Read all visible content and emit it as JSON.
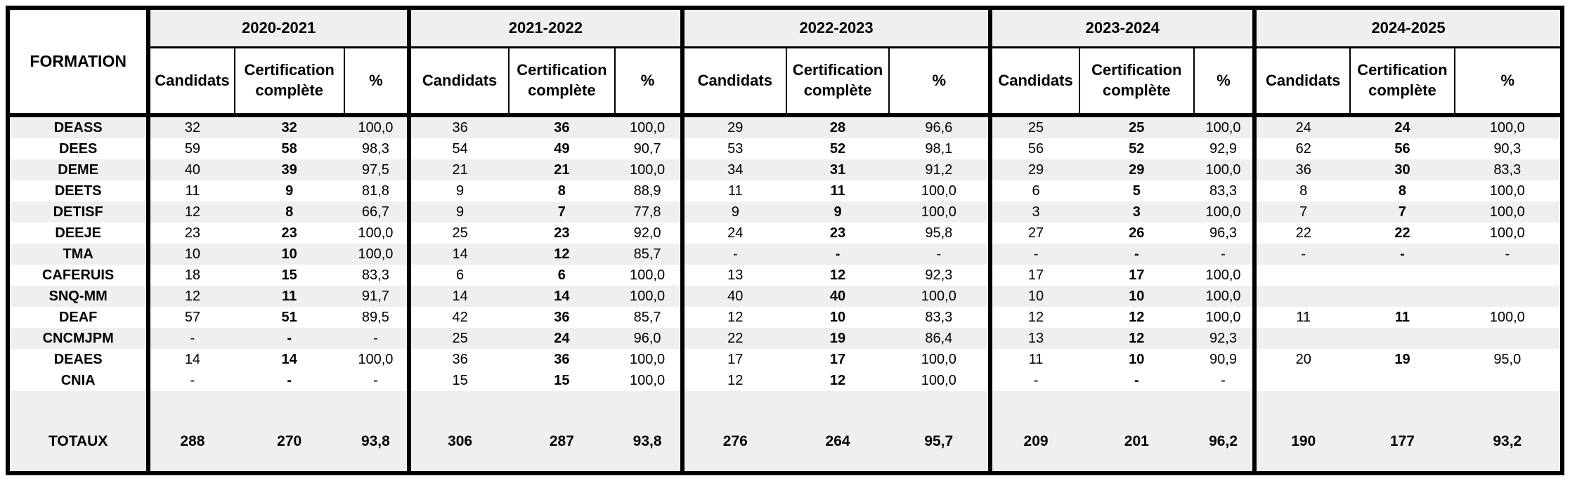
{
  "chart_data": {
    "type": "table",
    "formation_header": "FORMATION",
    "years": [
      "2020-2021",
      "2021-2022",
      "2022-2023",
      "2023-2024",
      "2024-2025"
    ],
    "sub_headers": {
      "candidats": "Candidats",
      "certification": "Certification complète",
      "percent": "%"
    },
    "rows": [
      {
        "formation": "DEASS",
        "shaded": true,
        "cells": [
          [
            "32",
            "32",
            "100,0"
          ],
          [
            "36",
            "36",
            "100,0"
          ],
          [
            "29",
            "28",
            "96,6"
          ],
          [
            "25",
            "25",
            "100,0"
          ],
          [
            "24",
            "24",
            "100,0"
          ]
        ]
      },
      {
        "formation": "DEES",
        "shaded": false,
        "cells": [
          [
            "59",
            "58",
            "98,3"
          ],
          [
            "54",
            "49",
            "90,7"
          ],
          [
            "53",
            "52",
            "98,1"
          ],
          [
            "56",
            "52",
            "92,9"
          ],
          [
            "62",
            "56",
            "90,3"
          ]
        ]
      },
      {
        "formation": "DEME",
        "shaded": true,
        "cells": [
          [
            "40",
            "39",
            "97,5"
          ],
          [
            "21",
            "21",
            "100,0"
          ],
          [
            "34",
            "31",
            "91,2"
          ],
          [
            "29",
            "29",
            "100,0"
          ],
          [
            "36",
            "30",
            "83,3"
          ]
        ]
      },
      {
        "formation": "DEETS",
        "shaded": false,
        "cells": [
          [
            "11",
            "9",
            "81,8"
          ],
          [
            "9",
            "8",
            "88,9"
          ],
          [
            "11",
            "11",
            "100,0"
          ],
          [
            "6",
            "5",
            "83,3"
          ],
          [
            "8",
            "8",
            "100,0"
          ]
        ]
      },
      {
        "formation": "DETISF",
        "shaded": true,
        "cells": [
          [
            "12",
            "8",
            "66,7"
          ],
          [
            "9",
            "7",
            "77,8"
          ],
          [
            "9",
            "9",
            "100,0"
          ],
          [
            "3",
            "3",
            "100,0"
          ],
          [
            "7",
            "7",
            "100,0"
          ]
        ]
      },
      {
        "formation": "DEEJE",
        "shaded": false,
        "cells": [
          [
            "23",
            "23",
            "100,0"
          ],
          [
            "25",
            "23",
            "92,0"
          ],
          [
            "24",
            "23",
            "95,8"
          ],
          [
            "27",
            "26",
            "96,3"
          ],
          [
            "22",
            "22",
            "100,0"
          ]
        ]
      },
      {
        "formation": "TMA",
        "shaded": true,
        "cells": [
          [
            "10",
            "10",
            "100,0"
          ],
          [
            "14",
            "12",
            "85,7"
          ],
          [
            "-",
            "-",
            "-"
          ],
          [
            "-",
            "-",
            "-"
          ],
          [
            "-",
            "-",
            "-"
          ]
        ]
      },
      {
        "formation": "CAFERUIS",
        "shaded": false,
        "cells": [
          [
            "18",
            "15",
            "83,3"
          ],
          [
            "6",
            "6",
            "100,0"
          ],
          [
            "13",
            "12",
            "92,3"
          ],
          [
            "17",
            "17",
            "100,0"
          ],
          [
            "",
            "",
            ""
          ]
        ]
      },
      {
        "formation": "SNQ-MM",
        "shaded": true,
        "cells": [
          [
            "12",
            "11",
            "91,7"
          ],
          [
            "14",
            "14",
            "100,0"
          ],
          [
            "40",
            "40",
            "100,0"
          ],
          [
            "10",
            "10",
            "100,0"
          ],
          [
            "",
            "",
            ""
          ]
        ]
      },
      {
        "formation": "DEAF",
        "shaded": false,
        "cells": [
          [
            "57",
            "51",
            "89,5"
          ],
          [
            "42",
            "36",
            "85,7"
          ],
          [
            "12",
            "10",
            "83,3"
          ],
          [
            "12",
            "12",
            "100,0"
          ],
          [
            "11",
            "11",
            "100,0"
          ]
        ]
      },
      {
        "formation": "CNCMJPM",
        "shaded": true,
        "cells": [
          [
            "-",
            "-",
            "-"
          ],
          [
            "25",
            "24",
            "96,0"
          ],
          [
            "22",
            "19",
            "86,4"
          ],
          [
            "13",
            "12",
            "92,3"
          ],
          [
            "",
            "",
            ""
          ]
        ]
      },
      {
        "formation": "DEAES",
        "shaded": false,
        "cells": [
          [
            "14",
            "14",
            "100,0"
          ],
          [
            "36",
            "36",
            "100,0"
          ],
          [
            "17",
            "17",
            "100,0"
          ],
          [
            "11",
            "10",
            "90,9"
          ],
          [
            "20",
            "19",
            "95,0"
          ]
        ]
      },
      {
        "formation": "CNIA",
        "shaded": false,
        "cells": [
          [
            "-",
            "-",
            "-"
          ],
          [
            "15",
            "15",
            "100,0"
          ],
          [
            "12",
            "12",
            "100,0"
          ],
          [
            "-",
            "-",
            "-"
          ],
          [
            "",
            "",
            ""
          ]
        ]
      }
    ],
    "totals": {
      "label": "TOTAUX",
      "cells": [
        [
          "288",
          "270",
          "93,8"
        ],
        [
          "306",
          "287",
          "93,8"
        ],
        [
          "276",
          "264",
          "95,7"
        ],
        [
          "209",
          "201",
          "96,2"
        ],
        [
          "190",
          "177",
          "93,2"
        ]
      ]
    }
  },
  "colors": {
    "shaded_row": "#efefef",
    "header_band": "#efefef",
    "border": "#000000",
    "background": "#ffffff",
    "text": "#000000"
  }
}
